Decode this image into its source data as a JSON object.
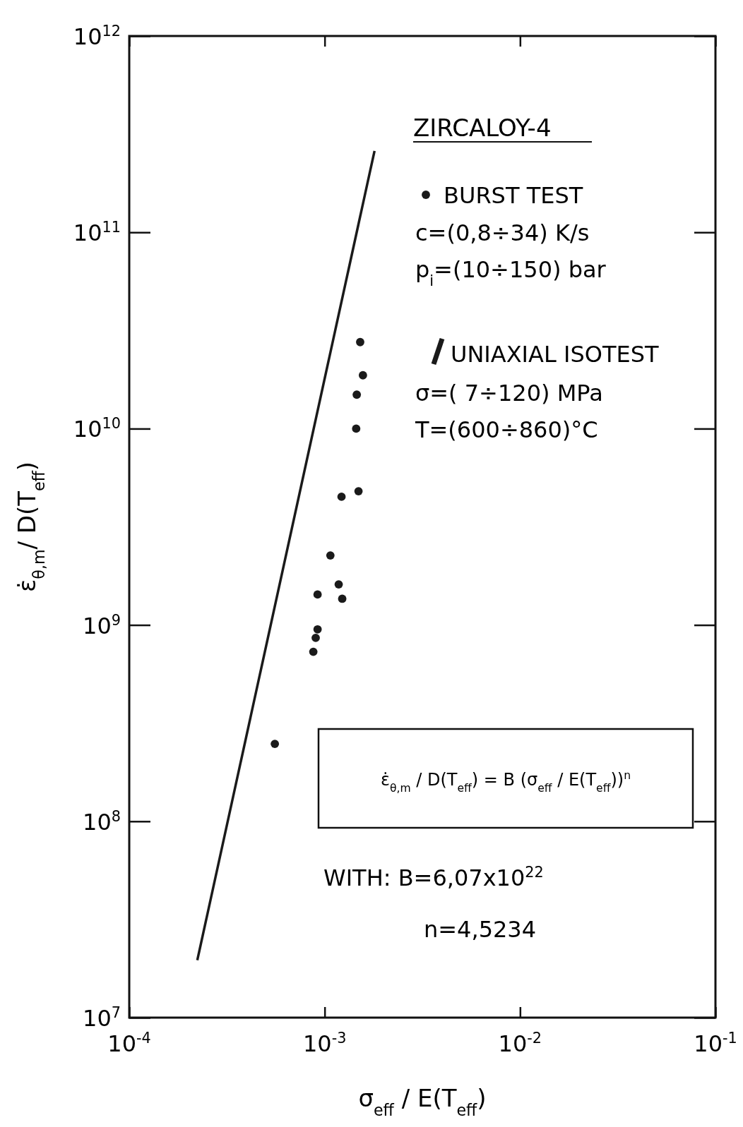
{
  "chart_data": {
    "type": "scatter",
    "title": "ZIRCALOY-4",
    "xlabel": "σ$_{eff}$  / E(T$_{eff}$)",
    "ylabel": "ε̇$_{θ,m}$/ D(T$_{eff}$)",
    "log": "xy",
    "grid": false,
    "legend": "top right",
    "xlim": [
      0.0001,
      0.1
    ],
    "ylim": [
      10000000,
      1000000000000
    ],
    "xticks": [
      {
        "value": 0.0001,
        "label": "10$^{-4}$"
      },
      {
        "value": 0.001,
        "label": "10$^{-3}$"
      },
      {
        "value": 0.01,
        "label": "10$^{-2}$"
      },
      {
        "value": 0.1,
        "label": "10$^{-1}$"
      }
    ],
    "yticks": [
      {
        "value": 10000000,
        "label": "10$^{7}$"
      },
      {
        "value": 100000000,
        "label": "10$^{8}$"
      },
      {
        "value": 1000000000,
        "label": "10$^{9}$"
      },
      {
        "value": 10000000000,
        "label": "10$^{10}$"
      },
      {
        "value": 100000000000,
        "label": "10$^{11}$"
      },
      {
        "value": 1000000000000,
        "label": "10$^{12}$"
      }
    ],
    "series": [
      {
        "name": "BURST TEST",
        "type": "scatter",
        "marker": "circle",
        "color": "#1a1a1a",
        "x": [
          0.00152,
          0.00157,
          0.00146,
          0.00145,
          0.00149,
          0.00122,
          0.00107,
          0.00118,
          0.00123,
          0.00092,
          0.00092,
          0.0009,
          0.000875,
          0.000556
        ],
        "values": [
          27600000000,
          18700000000,
          14900000000,
          10000000000,
          4800000000,
          4500000000,
          2260000000,
          1610000000,
          1360000000,
          1430000000,
          950000000,
          860000000,
          730000000,
          248000000
        ]
      },
      {
        "name": "UNIAXIAL ISOTEST",
        "type": "line",
        "marker": "none",
        "color": "#1a1a1a",
        "line_style": "solid",
        "x": [
          0.000223,
          0.0018
        ],
        "values": [
          19600000,
          260000000000
        ]
      }
    ],
    "annotations": [
      "c=(0,8÷34) K/s",
      "p$_{i}$=(10÷150) bar",
      "σ=( 7÷120) MPa",
      "T=(600÷860)°C",
      "ε̇$_{θ,m}$ / D(T$_{eff}$) = B (σ$_{eff}$ / E(T$_{eff}$))$^{n}$",
      "WITH: B=6,07x10$^{22}$",
      "n=4,5234"
    ]
  }
}
